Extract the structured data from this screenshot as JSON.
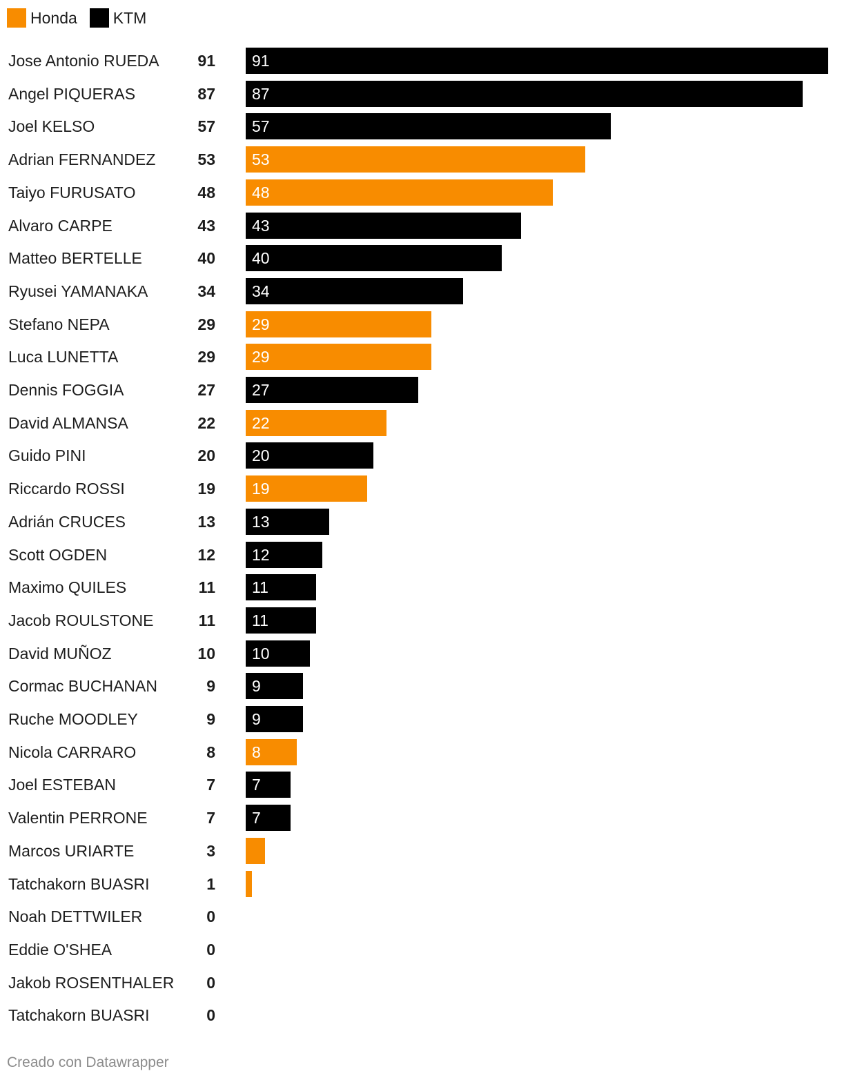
{
  "legend": [
    {
      "name": "Honda",
      "color": "#f88c00"
    },
    {
      "name": "KTM",
      "color": "#000000"
    }
  ],
  "colors": {
    "Honda": "#f88c00",
    "KTM": "#000000"
  },
  "footer": "Creado con Datawrapper",
  "chart_data": {
    "type": "bar",
    "orientation": "horizontal",
    "title": "",
    "xlabel": "",
    "ylabel": "",
    "xlim": [
      0,
      91
    ],
    "grid": false,
    "legend_position": "top-left",
    "categories": [
      "Jose Antonio RUEDA",
      "Angel PIQUERAS",
      "Joel KELSO",
      "Adrian FERNANDEZ",
      "Taiyo FURUSATO",
      "Alvaro CARPE",
      "Matteo BERTELLE",
      "Ryusei YAMANAKA",
      "Stefano NEPA",
      "Luca LUNETTA",
      "Dennis FOGGIA",
      "David ALMANSA",
      "Guido PINI",
      "Riccardo ROSSI",
      "Adrián CRUCES",
      "Scott OGDEN",
      "Maximo QUILES",
      "Jacob ROULSTONE",
      "David MUÑOZ",
      "Cormac BUCHANAN",
      "Ruche MOODLEY",
      "Nicola CARRARO",
      "Joel ESTEBAN",
      "Valentin PERRONE",
      "Marcos URIARTE",
      "Tatchakorn BUASRI",
      "Noah DETTWILER",
      "Eddie O'SHEA",
      "Jakob ROSENTHALER",
      "Tatchakorn BUASRI"
    ],
    "values": [
      91,
      87,
      57,
      53,
      48,
      43,
      40,
      34,
      29,
      29,
      27,
      22,
      20,
      19,
      13,
      12,
      11,
      11,
      10,
      9,
      9,
      8,
      7,
      7,
      3,
      1,
      0,
      0,
      0,
      0
    ],
    "brands": [
      "KTM",
      "KTM",
      "KTM",
      "Honda",
      "Honda",
      "KTM",
      "KTM",
      "KTM",
      "Honda",
      "Honda",
      "KTM",
      "Honda",
      "KTM",
      "Honda",
      "KTM",
      "KTM",
      "KTM",
      "KTM",
      "KTM",
      "KTM",
      "KTM",
      "Honda",
      "KTM",
      "KTM",
      "Honda",
      "Honda",
      "KTM",
      "KTM",
      "KTM",
      "KTM"
    ],
    "bar_labels": [
      "91",
      "87",
      "57",
      "53",
      "48",
      "43",
      "40",
      "34",
      "29",
      "29",
      "27",
      "22",
      "20",
      "19",
      "13",
      "12",
      "11",
      "11",
      "10",
      "9",
      "9",
      "8",
      "7",
      "7",
      "",
      "",
      "",
      "",
      "",
      ""
    ]
  }
}
